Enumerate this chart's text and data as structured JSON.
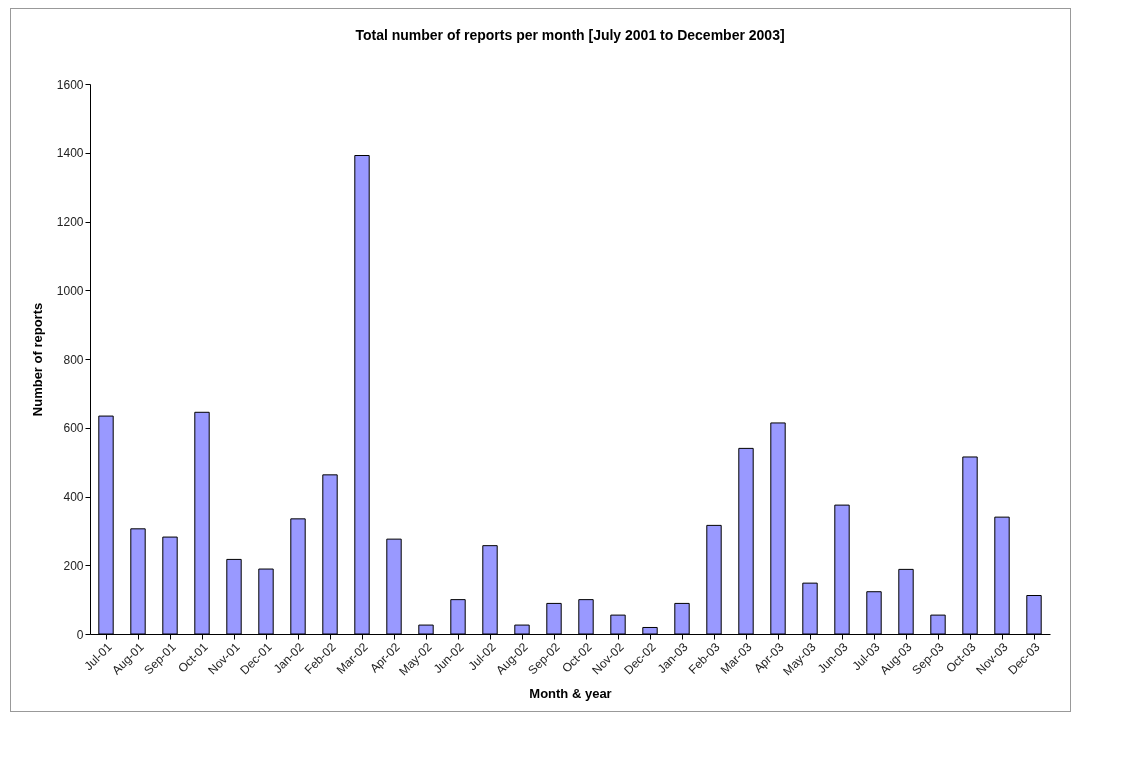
{
  "chart_data": {
    "type": "bar",
    "title": "Total number of reports per month [July 2001 to December 2003]",
    "xlabel": "Month & year",
    "ylabel": "Number of reports",
    "categories": [
      "Jul-01",
      "Aug-01",
      "Sep-01",
      "Oct-01",
      "Nov-01",
      "Dec-01",
      "Jan-02",
      "Feb-02",
      "Mar-02",
      "Apr-02",
      "May-02",
      "Jun-02",
      "Jul-02",
      "Aug-02",
      "Sep-02",
      "Oct-02",
      "Nov-02",
      "Dec-02",
      "Jan-03",
      "Feb-03",
      "Mar-03",
      "Apr-03",
      "May-03",
      "Jun-03",
      "Jul-03",
      "Aug-03",
      "Sep-03",
      "Oct-03",
      "Nov-03",
      "Dec-03"
    ],
    "values": [
      634,
      306,
      282,
      645,
      217,
      189,
      335,
      463,
      1392,
      276,
      26,
      100,
      257,
      26,
      89,
      100,
      55,
      19,
      89,
      316,
      540,
      614,
      148,
      375,
      123,
      188,
      55,
      515,
      340,
      112
    ],
    "color": "#9999ff",
    "ylim": [
      0,
      1600
    ],
    "yticks": [
      0,
      200,
      400,
      600,
      800,
      1000,
      1200,
      1400,
      1600
    ],
    "grid": false
  }
}
